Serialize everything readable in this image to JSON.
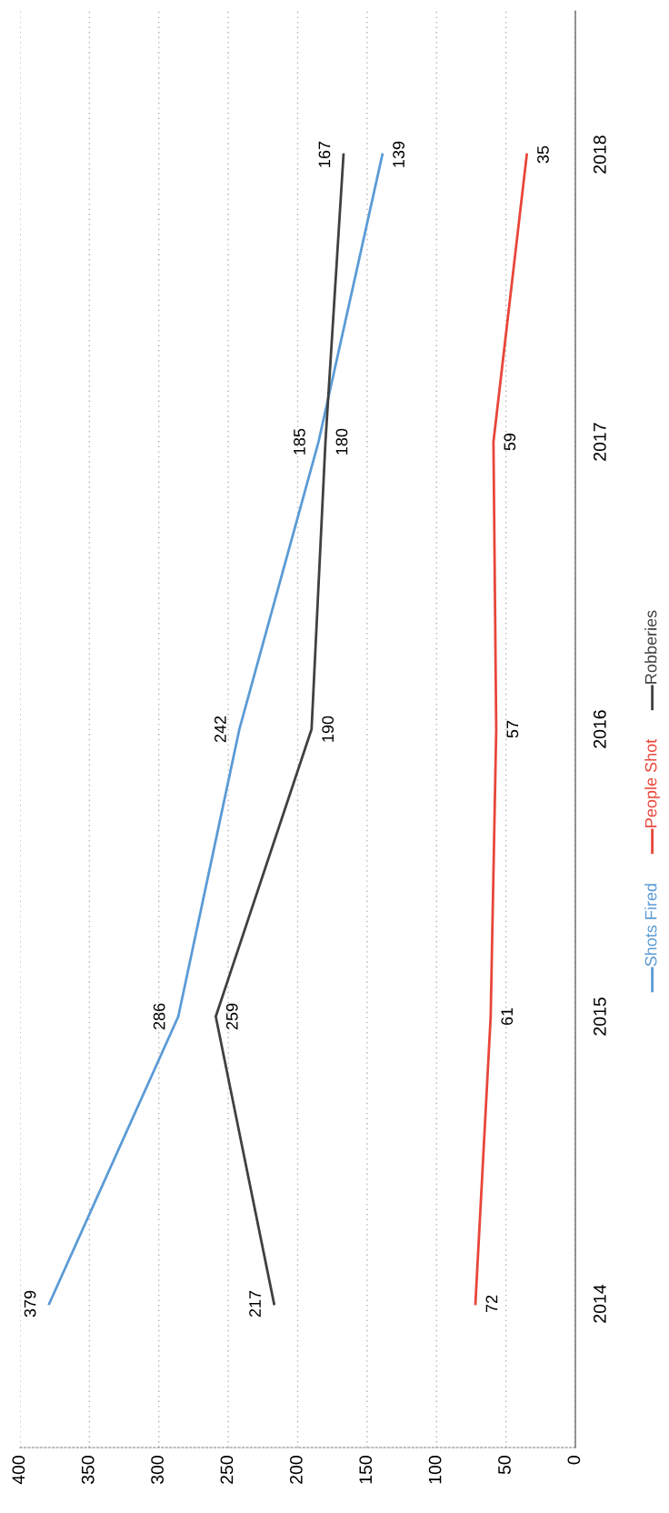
{
  "chart_data": {
    "type": "line",
    "orientation": "horizontal",
    "categories": [
      "2018",
      "2017",
      "2016",
      "2015",
      "2014"
    ],
    "series": [
      {
        "name": "Shots Fired",
        "color": "#5b9bd5",
        "values": [
          139,
          185,
          242,
          286,
          379
        ]
      },
      {
        "name": "People Shot",
        "color": "#e8463a",
        "values": [
          35,
          59,
          57,
          61,
          72
        ]
      },
      {
        "name": "Robberies",
        "color": "#404040",
        "values": [
          167,
          180,
          190,
          259,
          217
        ]
      }
    ],
    "xlim": [
      400,
      0
    ],
    "xticks": [
      400,
      350,
      300,
      250,
      200,
      150,
      100,
      50,
      0
    ],
    "grid": "x",
    "legend": "right",
    "data_labels": true,
    "marker": "none",
    "line_style": "solid"
  }
}
